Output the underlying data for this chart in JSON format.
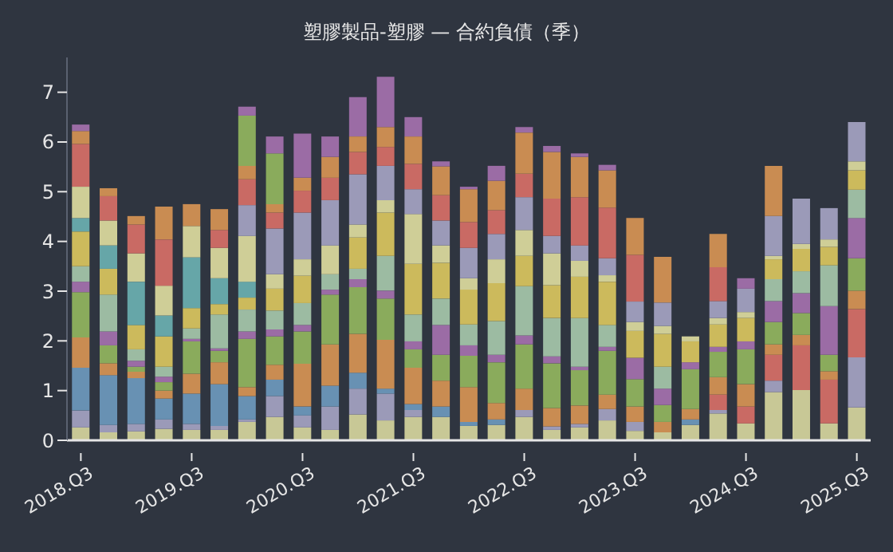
{
  "chart_data": {
    "type": "bar",
    "stacked": true,
    "title": "塑膠製品-塑膠 — 合約負債（季）",
    "categories": [
      "2018.Q3",
      null,
      null,
      null,
      "2019.Q3",
      null,
      null,
      null,
      "2020.Q3",
      null,
      null,
      null,
      "2021.Q3",
      null,
      null,
      null,
      "2022.Q3",
      null,
      null,
      null,
      "2023.Q3",
      null,
      null,
      null,
      "2024.Q3",
      null,
      null,
      null,
      "2025.Q3"
    ],
    "ylim": [
      0,
      7.7
    ],
    "yticks": [
      0,
      1,
      2,
      3,
      4,
      5,
      6,
      7
    ],
    "series": [
      {
        "color": "#c8c896",
        "values": [
          0.26,
          0.16,
          0.18,
          0.23,
          0.21,
          0.21,
          0.37,
          0.47,
          0.26,
          0.21,
          0.52,
          0.4,
          0.47,
          0.47,
          0.29,
          0.31,
          0.47,
          0.21,
          0.26,
          0.4,
          0.19,
          0.16,
          0.31,
          0.54,
          0.34,
          0.97,
          1.01,
          0.34,
          0.66
        ]
      },
      {
        "color": "#9b9ab8",
        "values": [
          0.34,
          0.15,
          0.15,
          0.19,
          0.12,
          0.08,
          0.05,
          0.42,
          0.24,
          0.47,
          0.52,
          0.54,
          0.14,
          null,
          null,
          null,
          0.14,
          0.07,
          0.07,
          0.23,
          0.18,
          null,
          null,
          0.07,
          null,
          0.23,
          null,
          null,
          1.01
        ]
      },
      {
        "color": "#c96a64",
        "values": [
          null,
          null,
          null,
          null,
          null,
          null,
          null,
          null,
          null,
          null,
          null,
          null,
          null,
          null,
          null,
          null,
          null,
          null,
          null,
          null,
          null,
          null,
          null,
          0.31,
          0.34,
          0.52,
          0.9,
          0.88,
          0.97
        ]
      },
      {
        "color": "#6891b3",
        "values": [
          0.86,
          1.0,
          0.92,
          0.42,
          0.61,
          0.84,
          0.47,
          0.33,
          0.18,
          0.42,
          0.32,
          0.1,
          0.12,
          0.21,
          0.08,
          0.11,
          null,
          null,
          null,
          null,
          null,
          null,
          0.11,
          null,
          null,
          null,
          null,
          null,
          null
        ]
      },
      {
        "color": "#c98c52",
        "values": [
          0.61,
          0.24,
          0.13,
          0.16,
          0.4,
          0.44,
          0.18,
          0.3,
          0.86,
          0.83,
          0.78,
          0.98,
          0.73,
          0.52,
          0.7,
          0.33,
          0.43,
          0.37,
          0.37,
          0.29,
          0.31,
          0.21,
          0.21,
          0.35,
          0.45,
          0.21,
          0.21,
          0.17,
          0.37
        ]
      },
      {
        "color": "#8aab5c",
        "values": [
          0.91,
          0.36,
          0.1,
          0.17,
          0.65,
          0.23,
          0.97,
          0.57,
          0.65,
          1.0,
          0.94,
          0.83,
          0.37,
          0.52,
          0.63,
          0.82,
          0.89,
          0.9,
          0.71,
          0.88,
          0.55,
          0.34,
          0.8,
          0.51,
          0.7,
          0.45,
          0.44,
          0.33,
          0.65
        ]
      },
      {
        "color": "#9b6ca5",
        "values": [
          0.21,
          0.28,
          0.12,
          0.11,
          0.05,
          0.05,
          0.15,
          0.14,
          0.13,
          0.1,
          0.16,
          0.16,
          0.16,
          0.6,
          0.21,
          0.15,
          0.18,
          0.14,
          0.07,
          0.08,
          0.43,
          0.33,
          0.14,
          0.1,
          0.16,
          0.42,
          0.4,
          0.98,
          0.81
        ]
      },
      {
        "color": "#9cbba2",
        "values": [
          0.31,
          0.74,
          0.23,
          0.2,
          0.21,
          0.68,
          0.44,
          0.38,
          0.44,
          0.31,
          0.21,
          0.7,
          0.54,
          0.53,
          0.42,
          0.68,
          0.99,
          0.77,
          0.98,
          0.44,
          null,
          0.44,
          null,
          null,
          null,
          0.44,
          0.44,
          0.82,
          0.57
        ]
      },
      {
        "color": "#ccba5c",
        "values": [
          0.7,
          0.52,
          0.49,
          0.61,
          0.41,
          0.21,
          0.24,
          0.44,
          0.55,
          null,
          0.63,
          0.87,
          1.02,
          0.72,
          0.7,
          0.76,
          0.61,
          0.66,
          0.83,
          0.87,
          0.54,
          0.66,
          0.42,
          0.45,
          0.47,
          0.4,
          0.45,
          0.37,
          0.39
        ]
      },
      {
        "color": "#66a6a8",
        "values": [
          0.27,
          0.47,
          0.87,
          0.42,
          1.02,
          0.52,
          0.32,
          null,
          null,
          null,
          null,
          null,
          null,
          null,
          null,
          null,
          null,
          null,
          null,
          null,
          null,
          null,
          null,
          null,
          null,
          null,
          null,
          null,
          null
        ]
      },
      {
        "color": "#cfce97",
        "values": [
          0.63,
          0.5,
          0.57,
          0.6,
          0.63,
          0.61,
          0.92,
          0.29,
          0.33,
          0.58,
          0.26,
          0.25,
          1.0,
          0.35,
          0.23,
          0.48,
          0.52,
          0.64,
          0.32,
          0.13,
          0.18,
          0.16,
          0.1,
          0.13,
          0.12,
          0.07,
          0.1,
          0.15,
          0.18
        ]
      },
      {
        "color": "#9b9ab8",
        "values": [
          null,
          null,
          null,
          null,
          null,
          null,
          0.62,
          0.92,
          0.94,
          0.91,
          1.01,
          0.69,
          0.5,
          0.5,
          0.61,
          0.51,
          0.66,
          0.35,
          0.31,
          0.34,
          0.41,
          0.47,
          null,
          0.34,
          0.47,
          0.8,
          0.91,
          0.63,
          0.79
        ]
      },
      {
        "color": "#c96a64",
        "values": [
          0.86,
          0.49,
          0.58,
          0.93,
          null,
          0.36,
          0.52,
          0.32,
          0.44,
          0.45,
          0.45,
          0.38,
          0.51,
          0.51,
          0.52,
          0.48,
          0.47,
          0.75,
          0.97,
          1.02,
          0.94,
          null,
          null,
          0.68,
          null,
          null,
          null,
          null,
          null
        ]
      },
      {
        "color": "#c98c52",
        "values": [
          0.26,
          0.16,
          0.17,
          0.66,
          0.44,
          0.42,
          0.27,
          0.17,
          0.26,
          0.42,
          0.31,
          0.4,
          0.55,
          0.58,
          0.66,
          0.59,
          0.83,
          0.94,
          0.81,
          0.75,
          0.74,
          0.92,
          null,
          0.67,
          null,
          1.01,
          null,
          null,
          null
        ]
      },
      {
        "color": "#8aab5c",
        "values": [
          null,
          null,
          null,
          null,
          null,
          null,
          1.01,
          1.02,
          null,
          null,
          null,
          null,
          null,
          null,
          null,
          null,
          null,
          null,
          null,
          null,
          null,
          null,
          null,
          null,
          null,
          null,
          null,
          null,
          null
        ]
      },
      {
        "color": "#9b6ca5",
        "values": [
          0.13,
          null,
          null,
          null,
          null,
          null,
          0.18,
          0.34,
          0.89,
          0.41,
          0.79,
          1.01,
          0.39,
          0.1,
          0.05,
          0.3,
          0.11,
          0.12,
          0.07,
          0.11,
          null,
          null,
          null,
          null,
          0.21,
          null,
          null,
          null,
          null
        ]
      }
    ]
  }
}
